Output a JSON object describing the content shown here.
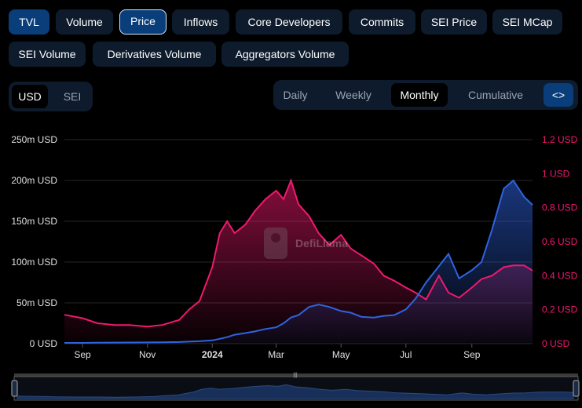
{
  "tabs": [
    {
      "label": "TVL",
      "state": "active"
    },
    {
      "label": "Volume",
      "state": "normal"
    },
    {
      "label": "Price",
      "state": "selected"
    },
    {
      "label": "Inflows",
      "state": "normal"
    },
    {
      "label": "Core Developers",
      "state": "normal"
    },
    {
      "label": "Commits",
      "state": "normal"
    },
    {
      "label": "SEI Price",
      "state": "normal"
    },
    {
      "label": "SEI MCap",
      "state": "normal"
    },
    {
      "label": "SEI Volume",
      "state": "normal"
    },
    {
      "label": "Derivatives Volume",
      "state": "normal"
    },
    {
      "label": "Aggregators Volume",
      "state": "normal"
    }
  ],
  "currency_toggle": {
    "options": [
      "USD",
      "SEI"
    ],
    "selected": "USD"
  },
  "period_toggle": {
    "options": [
      "Daily",
      "Weekly",
      "Monthly",
      "Cumulative"
    ],
    "selected": "Monthly",
    "embed_icon": "<>",
    "embed_icon_name": "code-embed-icon"
  },
  "watermark": "DefiLlama",
  "colors": {
    "tvl": "#2f63e0",
    "price": "#f0196e",
    "background": "#000000",
    "pill": "#0e1b2c",
    "pill_active": "#0a3e7a"
  },
  "chart_data": {
    "type": "area",
    "x_labels": [
      "Sep",
      "Nov",
      "2024",
      "Mar",
      "May",
      "Jul",
      "Sep"
    ],
    "left_axis": {
      "ticks": [
        "0 USD",
        "50m USD",
        "100m USD",
        "150m USD",
        "200m USD",
        "250m USD"
      ],
      "range": [
        0,
        250
      ]
    },
    "right_axis": {
      "ticks": [
        "0 USD",
        "0.2 USD",
        "0.4 USD",
        "0.6 USD",
        "0.8 USD",
        "1 USD",
        "1.2 USD"
      ],
      "range": [
        0,
        1.2
      ]
    },
    "grid": true,
    "x": [
      "2023-08-15",
      "2023-09-01",
      "2023-09-15",
      "2023-10-01",
      "2023-10-15",
      "2023-11-01",
      "2023-11-15",
      "2023-12-01",
      "2023-12-10",
      "2023-12-20",
      "2024-01-01",
      "2024-01-08",
      "2024-01-15",
      "2024-01-22",
      "2024-02-01",
      "2024-02-10",
      "2024-02-20",
      "2024-03-01",
      "2024-03-08",
      "2024-03-15",
      "2024-03-22",
      "2024-04-01",
      "2024-04-10",
      "2024-04-20",
      "2024-05-01",
      "2024-05-10",
      "2024-05-20",
      "2024-06-01",
      "2024-06-10",
      "2024-06-20",
      "2024-07-01",
      "2024-07-10",
      "2024-07-20",
      "2024-08-01",
      "2024-08-10",
      "2024-08-20",
      "2024-09-01",
      "2024-09-10",
      "2024-09-20",
      "2024-10-01",
      "2024-10-10",
      "2024-10-20",
      "2024-10-28"
    ],
    "series": [
      {
        "name": "TVL",
        "axis": "left",
        "unit": "m USD",
        "values": [
          1,
          1,
          1.2,
          1.3,
          1.4,
          1.5,
          1.6,
          2,
          2.5,
          3,
          4,
          6,
          8,
          11,
          13,
          15,
          18,
          20,
          25,
          32,
          35,
          45,
          48,
          45,
          40,
          38,
          33,
          32,
          34,
          35,
          42,
          55,
          75,
          95,
          110,
          80,
          90,
          100,
          140,
          190,
          200,
          180,
          170
        ]
      },
      {
        "name": "SEI Price",
        "axis": "right",
        "unit": "USD",
        "values": [
          0.17,
          0.15,
          0.12,
          0.11,
          0.11,
          0.1,
          0.11,
          0.14,
          0.2,
          0.25,
          0.45,
          0.65,
          0.72,
          0.65,
          0.7,
          0.78,
          0.85,
          0.9,
          0.85,
          0.96,
          0.82,
          0.75,
          0.65,
          0.58,
          0.64,
          0.56,
          0.52,
          0.47,
          0.4,
          0.37,
          0.33,
          0.3,
          0.26,
          0.4,
          0.3,
          0.27,
          0.33,
          0.38,
          0.4,
          0.45,
          0.46,
          0.46,
          0.43
        ]
      }
    ]
  }
}
